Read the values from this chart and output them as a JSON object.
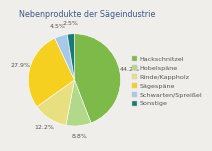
{
  "title": "Nebenprodukte der Sägeindustrie",
  "labels": [
    "Hackschnitzel",
    "Hobelspäne",
    "Rinde/Kappholz",
    "Sägespäne",
    "Schwarten/Spreißel",
    "Sonstige"
  ],
  "values": [
    44.2,
    8.8,
    12.2,
    27.9,
    4.5,
    2.5
  ],
  "colors": [
    "#7dba4a",
    "#b2d98a",
    "#e8e080",
    "#f5d020",
    "#a8c8e8",
    "#1a7a7a"
  ],
  "background_color": "#f0eeea",
  "title_fontsize": 5.8,
  "legend_fontsize": 4.6,
  "pct_fontsize": 4.5
}
